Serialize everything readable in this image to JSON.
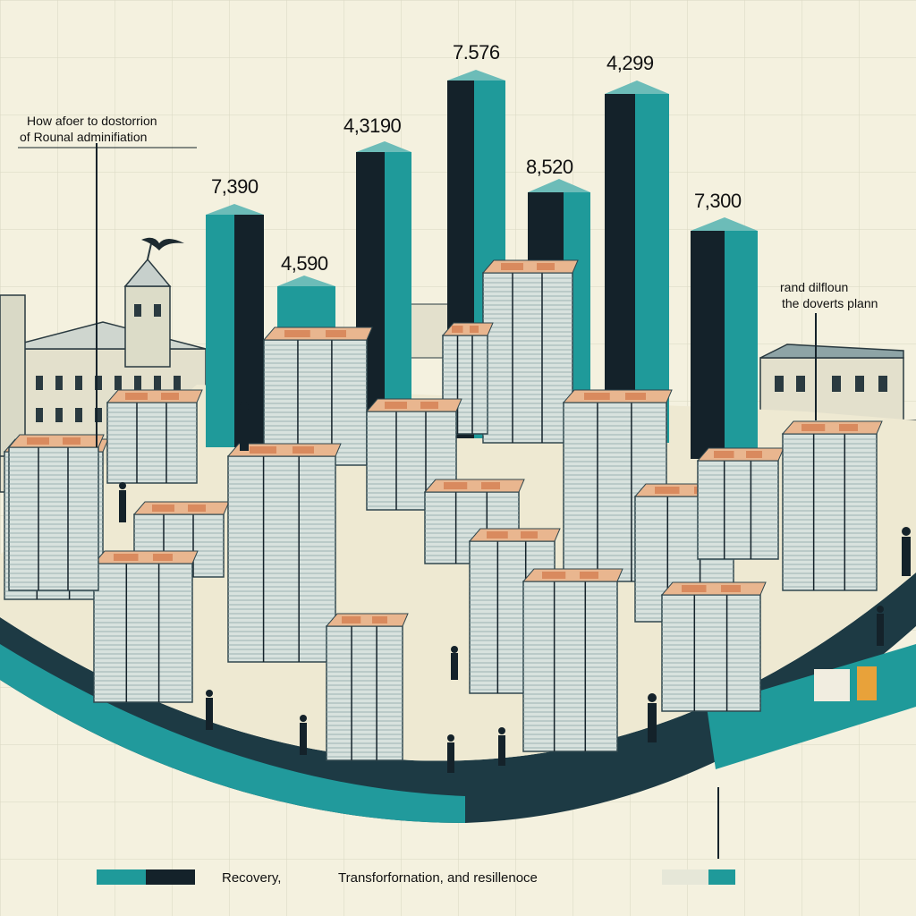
{
  "annotations": {
    "top_left_line1": "How afoer to dostorrion",
    "top_left_line2": "of Rounal adminifiation",
    "right_line1": "rand dilfloun",
    "right_line2": "the doverts plann"
  },
  "bar_values": [
    "7,390",
    "4,590",
    "4,3190",
    "7.576",
    "8,520",
    "4,299",
    "7,300"
  ],
  "legend": {
    "item1": "Recovery,",
    "item2": "Transforfornation, and resillenoce"
  },
  "colors": {
    "teal": "#1f9a9a",
    "dark": "#14222a",
    "background": "#f4f1df",
    "platform": "#eee9d2",
    "orange": "#e8a23a"
  }
}
